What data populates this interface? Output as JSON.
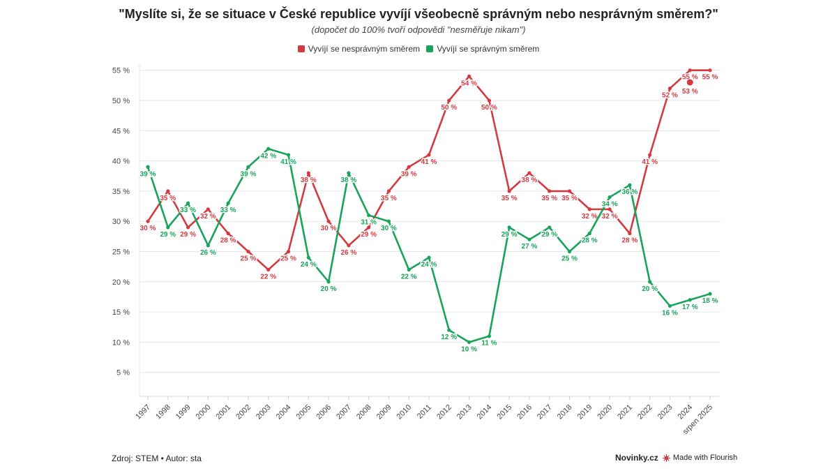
{
  "title": "\"Myslíte si, že se situace v České republice vyvíjí všeobecně správným nebo nesprávným směrem?\"",
  "subtitle": "(dopočet do 100% tvoří odpovědi \"nesměřuje nikam\")",
  "footer": {
    "source": "Zdroj: STEM • Autor: sta",
    "brand": "Novinky.cz",
    "made_with": "Made with Flourish"
  },
  "colors": {
    "wrong": "#d33a40",
    "right": "#17a35a",
    "grid": "#e6e6e6",
    "axis_text": "#444444"
  },
  "chart_data": {
    "type": "line",
    "categories": [
      "1997",
      "1998",
      "1999",
      "2000",
      "2001",
      "2002",
      "2003",
      "2004",
      "2005",
      "2006",
      "2007",
      "2008",
      "2009",
      "2010",
      "2011",
      "2012",
      "2013",
      "2014",
      "2015",
      "2016",
      "2017",
      "2018",
      "2019",
      "2020",
      "2021",
      "2022",
      "2023",
      "2024",
      "srpen 2025"
    ],
    "y_ticks": [
      5,
      10,
      15,
      20,
      25,
      30,
      35,
      40,
      45,
      50,
      55
    ],
    "y_suffix": " %",
    "ylim": [
      0,
      56
    ],
    "grid": true,
    "legend_position": "top-center",
    "series": [
      {
        "name": "Vyvíjí se nesprávným směrem",
        "color": "#d33a40",
        "values": [
          30,
          35,
          29,
          32,
          28,
          25,
          22,
          25,
          38,
          30,
          26,
          29,
          35,
          39,
          41,
          50,
          54,
          50,
          35,
          38,
          35,
          35,
          32,
          32,
          28,
          41,
          52,
          55,
          55
        ],
        "extra_point": {
          "category_index": 27,
          "value": 53
        }
      },
      {
        "name": "Vyvíjí se správným směrem",
        "color": "#17a35a",
        "values": [
          39,
          29,
          33,
          26,
          33,
          39,
          42,
          41,
          24,
          20,
          38,
          31,
          30,
          22,
          24,
          12,
          10,
          11,
          29,
          27,
          29,
          25,
          28,
          34,
          36,
          20,
          16,
          17,
          18
        ]
      }
    ]
  }
}
